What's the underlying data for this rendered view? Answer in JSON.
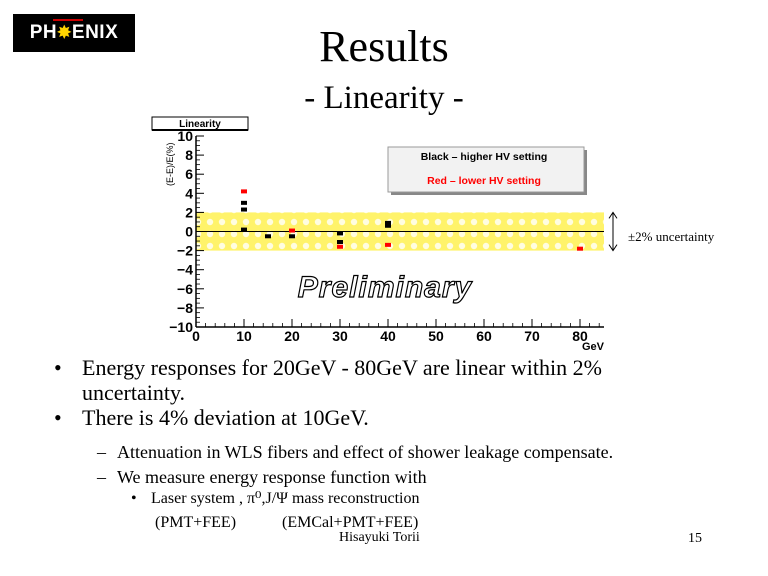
{
  "logo": {
    "text_left": "PH",
    "text_right": "ENIX"
  },
  "header": {
    "title": "Results",
    "subtitle": "- Linearity -"
  },
  "chart_data": {
    "type": "scatter",
    "title": "Linearity",
    "ylabel": "(E-E)/E(%)",
    "xlabel": "GeV",
    "xlim": [
      0,
      85
    ],
    "ylim": [
      -10,
      10
    ],
    "xticks": [
      0,
      10,
      20,
      30,
      40,
      50,
      60,
      70,
      80
    ],
    "yticks": [
      10,
      8,
      6,
      4,
      2,
      0,
      -2,
      -4,
      -6,
      -8,
      -10
    ],
    "band": {
      "low": -2,
      "high": 2,
      "label": "±2% uncertainty"
    },
    "watermark": "Preliminary",
    "legend": {
      "entries": [
        "Black – higher HV setting",
        "Red – lower HV setting"
      ],
      "colors": [
        "#000000",
        "#ff0000"
      ],
      "placement": "top-right"
    },
    "series": [
      {
        "name": "Black – higher HV setting",
        "color": "#000000",
        "points": [
          [
            10,
            3.0
          ],
          [
            10,
            2.3
          ],
          [
            10,
            0.2
          ],
          [
            15,
            -0.5
          ],
          [
            20,
            -0.5
          ],
          [
            30,
            -0.2
          ],
          [
            30,
            -1.1
          ],
          [
            40,
            0.6
          ],
          [
            40,
            0.9
          ]
        ]
      },
      {
        "name": "Red – lower HV setting",
        "color": "#ff0000",
        "points": [
          [
            10,
            4.2
          ],
          [
            20,
            0.1
          ],
          [
            30,
            -1.6
          ],
          [
            40,
            -1.4
          ],
          [
            80,
            -1.8
          ]
        ]
      }
    ]
  },
  "bullets": [
    "Energy responses for 20GeV - 80GeV are linear within 2%",
    "uncertainty.",
    "There is 4% deviation at 10GeV."
  ],
  "sub_bullets": [
    "Attenuation in WLS fibers and effect of shower leakage compensate.",
    "We measure energy response function with"
  ],
  "sub_sub": {
    "line": "Laser system ,   π⁰,J/Ψ mass reconstruction",
    "paren_left": "(PMT+FEE)",
    "paren_right": "(EMCal+PMT+FEE)"
  },
  "footer": {
    "author": "Hisayuki Torii",
    "page": "15"
  }
}
